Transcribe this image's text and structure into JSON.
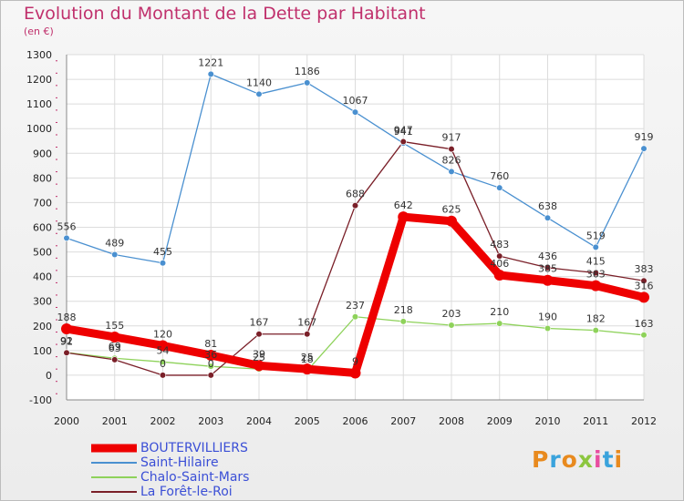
{
  "title": "Evolution du Montant de la Dette par Habitant",
  "subtitle": "(en €)",
  "logo": {
    "text": "Proxiti",
    "colors": [
      "#e88a1e",
      "#3aa3dc",
      "#e88a1e",
      "#8cc63f",
      "#e84ea0",
      "#3aa3dc",
      "#e88a1e"
    ]
  },
  "chart_data": {
    "type": "line",
    "title": "Evolution du Montant de la Dette par Habitant",
    "ylabel": "(en €)",
    "xlabel": "",
    "x": [
      "2000",
      "2001",
      "2002",
      "2003",
      "2004",
      "2005",
      "2006",
      "2007",
      "2008",
      "2009",
      "2010",
      "2011",
      "2012"
    ],
    "yticks": [
      "-100",
      "0",
      "100",
      "200",
      "300",
      "400",
      "500",
      "600",
      "700",
      "800",
      "900",
      "1000",
      "1100",
      "1200",
      "1300"
    ],
    "ylim": [
      -100,
      1300
    ],
    "grid": true,
    "legend_position": "bottom-left",
    "series": [
      {
        "name": "BOUTERVILLIERS",
        "color": "#ee0000",
        "values": [
          188,
          155,
          120,
          81,
          39,
          25,
          9,
          642,
          625,
          406,
          385,
          363,
          316
        ],
        "labels": [
          "188",
          "155",
          "120",
          "81",
          "39",
          "25",
          "9",
          "642",
          "625",
          "406",
          "385",
          "363",
          "316"
        ]
      },
      {
        "name": "Saint-Hilaire",
        "color": "#4a90d0",
        "values": [
          556,
          489,
          455,
          1221,
          1140,
          1186,
          1067,
          941,
          826,
          760,
          638,
          519,
          919
        ],
        "labels": [
          "556",
          "489",
          "455",
          "1221",
          "1140",
          "1186",
          "1067",
          "941",
          "826",
          "760",
          "638",
          "519",
          "919"
        ]
      },
      {
        "name": "Chalo-Saint-Mars",
        "color": "#8ed25a",
        "values": [
          92,
          69,
          54,
          36,
          25,
          18,
          237,
          218,
          203,
          210,
          190,
          182,
          163
        ],
        "labels": [
          "92",
          "69",
          "54",
          "36",
          "25",
          "18",
          "237",
          "218",
          "203",
          "210",
          "190",
          "182",
          "163"
        ]
      },
      {
        "name": "La Forêt-le-Roi",
        "color": "#7a1f28",
        "values": [
          91,
          63,
          0,
          0,
          167,
          167,
          688,
          947,
          917,
          483,
          436,
          415,
          383
        ],
        "labels": [
          "91",
          "63",
          "0",
          "0",
          "167",
          "167",
          "688",
          "947",
          "917",
          "483",
          "436",
          "415",
          "383"
        ]
      }
    ]
  }
}
